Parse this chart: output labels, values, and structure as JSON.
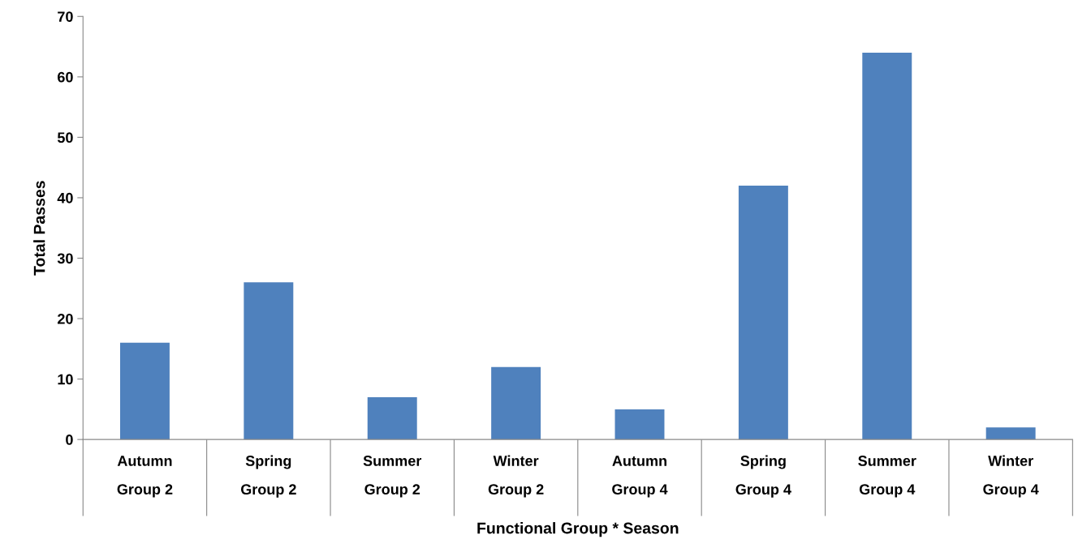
{
  "chart_data": {
    "type": "bar",
    "xlabel": "Functional Group * Season",
    "ylabel": "Total Passes",
    "categories": [
      "Autumn\nGroup 2",
      "Spring\nGroup 2",
      "Summer\nGroup 2",
      "Winter\nGroup 2",
      "Autumn\nGroup 4",
      "Spring\nGroup 4",
      "Summer\nGroup 4",
      "Winter\nGroup 4"
    ],
    "values": [
      16,
      26,
      7,
      12,
      5,
      42,
      64,
      2
    ],
    "color": "#4f81bd",
    "ylim": [
      0,
      70
    ],
    "yticks": [
      0,
      10,
      20,
      30,
      40,
      50,
      60,
      70
    ],
    "grid": false,
    "legend": false
  }
}
